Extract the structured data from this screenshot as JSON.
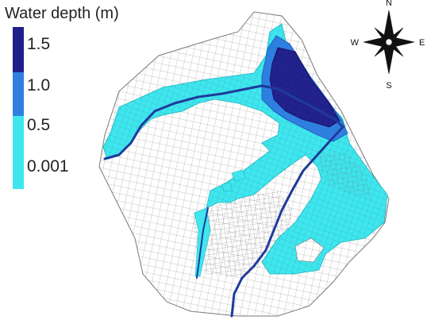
{
  "legend": {
    "title": "Water depth (m)",
    "labels": [
      "1.5",
      "1.0",
      "0.5",
      "0.001"
    ],
    "colors": {
      "deep": "#1f1f8a",
      "high": "#2f7fe0",
      "mid": "#3fe6ee",
      "low": "#3fe6ee"
    }
  },
  "compass": {
    "north": "N",
    "south": "S",
    "east": "E",
    "west": "W"
  },
  "map": {
    "mesh_color": "#9a9a9a",
    "river_color": "#1f3a9a"
  }
}
